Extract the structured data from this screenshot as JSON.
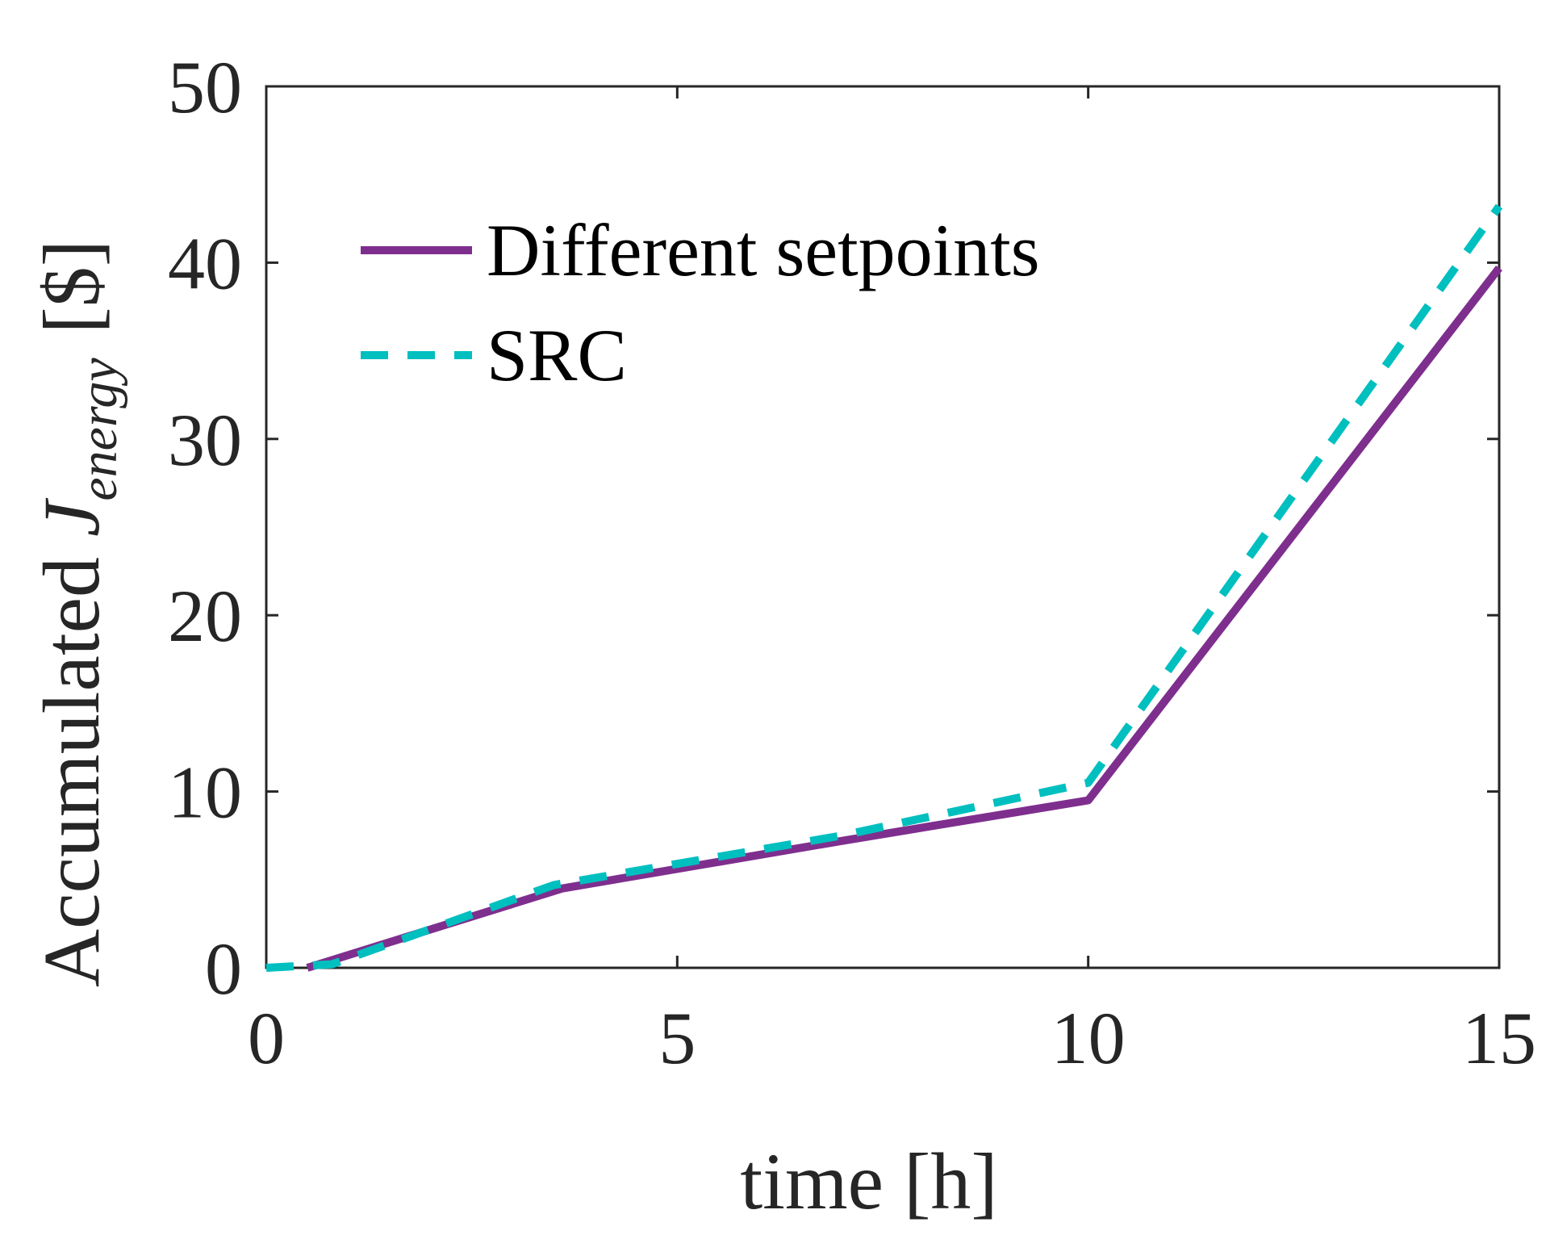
{
  "chart_data": {
    "type": "line",
    "title": "",
    "xlabel": "time [h]",
    "ylabel": {
      "prefix": "Accumulated ",
      "symbol": "J",
      "subscript": "energy",
      "unit": "[$]"
    },
    "xlim": [
      0,
      15
    ],
    "ylim": [
      0,
      50
    ],
    "xticks": [
      0,
      5,
      10,
      15
    ],
    "yticks": [
      0,
      10,
      20,
      30,
      40,
      50
    ],
    "xtick_labels": [
      "0",
      "5",
      "10",
      "15"
    ],
    "ytick_labels": [
      "0",
      "10",
      "20",
      "30",
      "40",
      "50"
    ],
    "grid": false,
    "legend_position": "top-left",
    "series": [
      {
        "name": "Different setpoints",
        "color": "#7E2F8E",
        "style": "solid",
        "x": [
          0.5,
          3.6,
          7.0,
          10.0,
          15.0
        ],
        "y": [
          0,
          4.5,
          7.2,
          9.5,
          39.7
        ]
      },
      {
        "name": "SRC",
        "color": "#00BFBF",
        "style": "dashed",
        "x": [
          0,
          0.8,
          3.5,
          7.0,
          10.0,
          15.0
        ],
        "y": [
          0,
          0.2,
          4.7,
          7.5,
          10.5,
          43.2
        ]
      }
    ]
  }
}
